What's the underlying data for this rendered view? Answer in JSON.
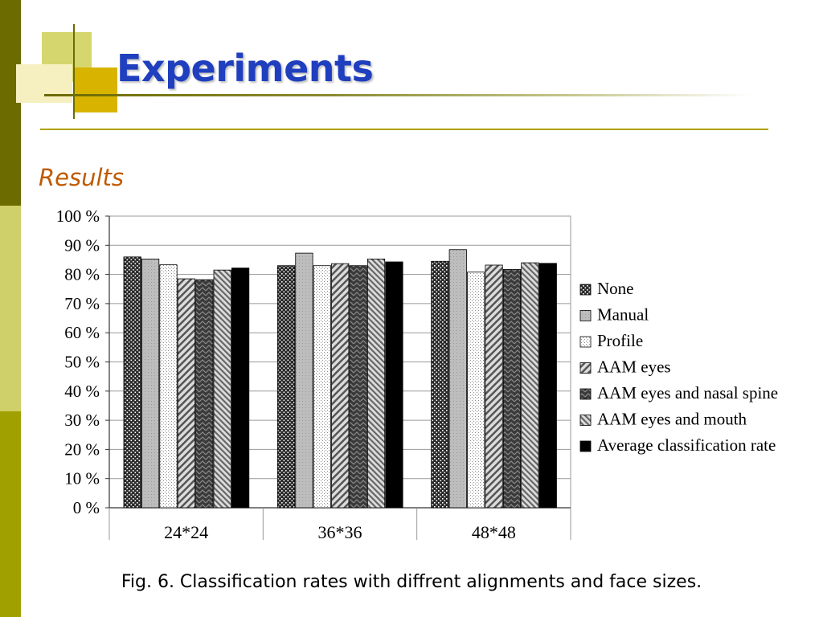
{
  "slide": {
    "title": "Experiments",
    "subtitle": "Results",
    "caption": "Fig. 6. Classification rates with diffrent alignments and face sizes."
  },
  "chart_data": {
    "type": "bar",
    "categories": [
      "24*24",
      "36*36",
      "48*48"
    ],
    "series": [
      {
        "name": "None",
        "values": [
          86,
          83,
          84.5
        ]
      },
      {
        "name": "Manual",
        "values": [
          85.3,
          87.3,
          88.5
        ]
      },
      {
        "name": "Profile",
        "values": [
          83.3,
          83,
          80.8
        ]
      },
      {
        "name": "AAM eyes",
        "values": [
          78.5,
          83.7,
          83.2
        ]
      },
      {
        "name": "AAM eyes and nasal spine",
        "values": [
          78.2,
          83,
          81.7
        ]
      },
      {
        "name": "AAM eyes and mouth",
        "values": [
          81.5,
          85.3,
          84
        ]
      },
      {
        "name": "Average classification rate",
        "values": [
          82.2,
          84.3,
          83.8
        ]
      }
    ],
    "yticks": [
      "0 %",
      "10 %",
      "20 %",
      "30 %",
      "40 %",
      "50 %",
      "60 %",
      "70 %",
      "80 %",
      "90 %",
      "100 %"
    ],
    "ylim": [
      0,
      100
    ],
    "grid": true,
    "legend_position": "right"
  }
}
